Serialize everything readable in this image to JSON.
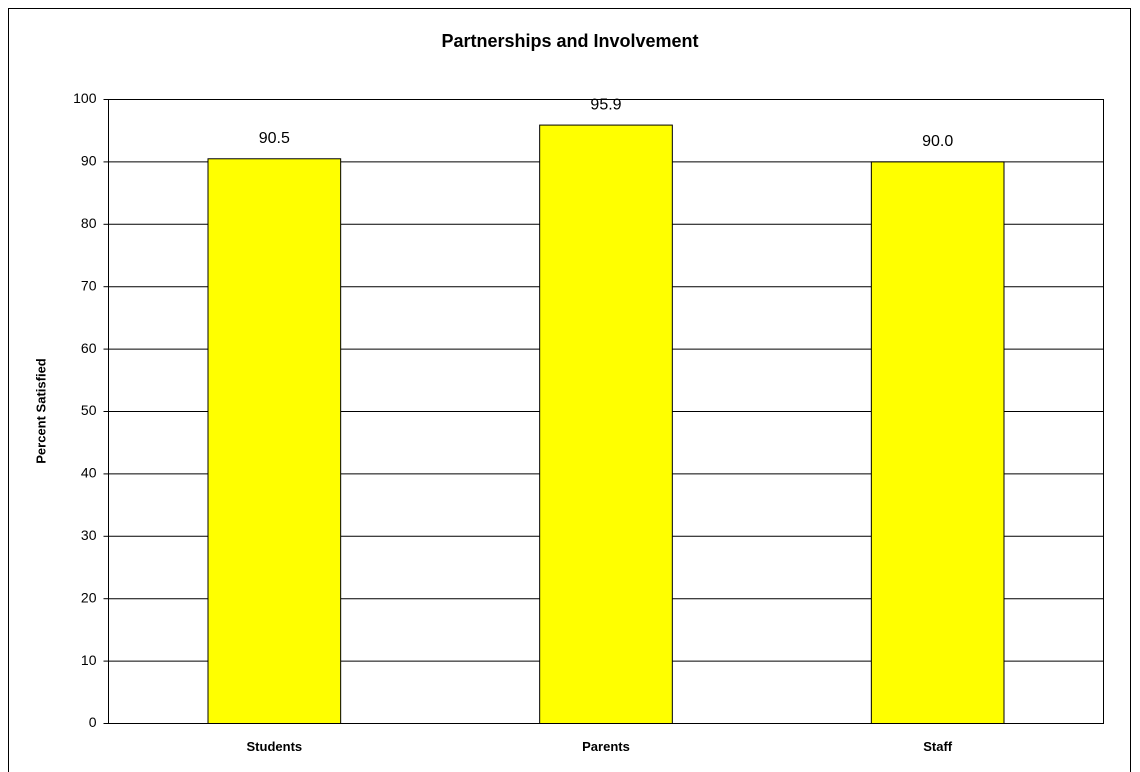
{
  "chart_data": {
    "type": "bar",
    "title": "Partnerships and Involvement",
    "y_label": "Percent Satisfied",
    "categories": [
      "Students",
      "Parents",
      "Staff"
    ],
    "values": [
      90.5,
      95.9,
      90
    ],
    "value_labels": [
      "90.5",
      "95.9",
      "90.0"
    ],
    "color": "#ffff00",
    "ylim": [
      0,
      100
    ],
    "yticks": [
      0,
      10,
      20,
      30,
      40,
      50,
      60,
      70,
      80,
      90,
      100
    ],
    "grid": true
  }
}
